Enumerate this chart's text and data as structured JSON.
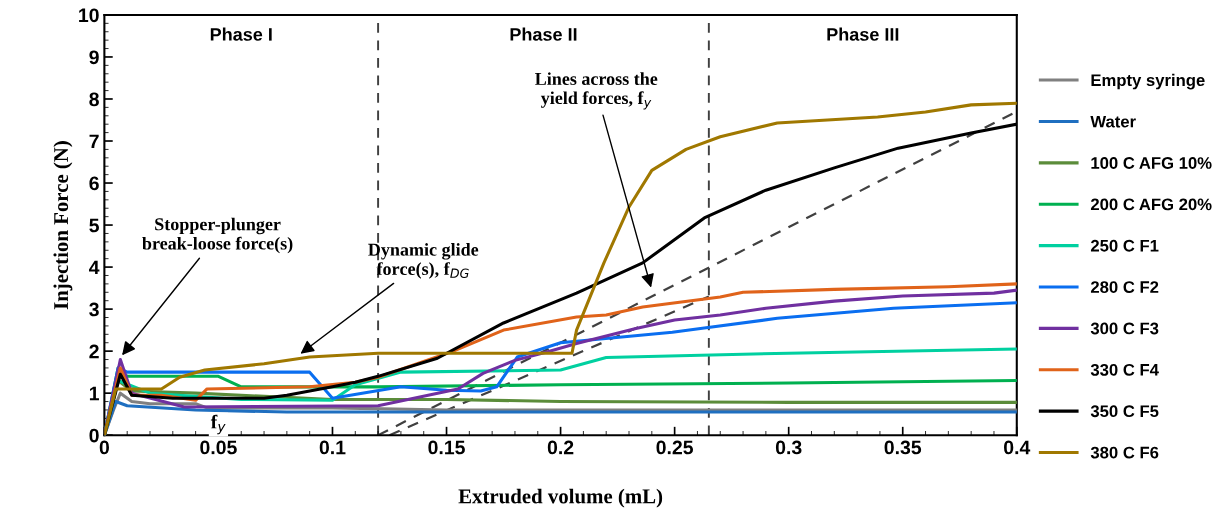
{
  "chart_data": {
    "type": "line",
    "xlabel": "Extruded volume (mL)",
    "ylabel": "Injection Force (N)",
    "xlim": [
      0,
      0.4
    ],
    "ylim": [
      0,
      10
    ],
    "xticks": [
      0,
      0.05,
      0.1,
      0.15,
      0.2,
      0.25,
      0.3,
      0.35,
      0.4
    ],
    "yticks": [
      0,
      1,
      2,
      3,
      4,
      5,
      6,
      7,
      8,
      9,
      10
    ],
    "grid": false,
    "legend": "right",
    "line_style": "solid",
    "marker": "none",
    "ref_lines": [
      {
        "axis": "x",
        "value": 0.12,
        "color": "#404040",
        "line_style": "dashed"
      },
      {
        "axis": "x",
        "value": 0.265,
        "color": "#404040",
        "line_style": "dashed"
      }
    ],
    "annotations": [
      "Phase I",
      "Phase II",
      "Phase III",
      {
        "text": "Stopper-plunger\nbreak-loose force(s)",
        "x": 0.007,
        "y": 1.85
      },
      {
        "text": "Dynamic glide\nforce(s), f$_{DG}$",
        "x": 0.085,
        "y": 1.9
      },
      {
        "text": "Lines across the\nyield forces, f$_{y}$",
        "x": 0.24,
        "y": 3.45
      },
      {
        "text": "f$_{y}$",
        "x": 0.05,
        "y": 0.55
      }
    ],
    "series": [
      {
        "name": "Empty syringe",
        "color": "#808080",
        "x": [
          0,
          0.004,
          0.007,
          0.012,
          0.02,
          0.04,
          0.045,
          0.1,
          0.15,
          0.2,
          0.3,
          0.4
        ],
        "values": [
          0,
          0.6,
          1.0,
          0.8,
          0.75,
          0.75,
          0.65,
          0.65,
          0.6,
          0.6,
          0.6,
          0.6
        ]
      },
      {
        "name": "Water",
        "color": "#1f6fc0",
        "x": [
          0,
          0.005,
          0.01,
          0.04,
          0.08,
          0.2,
          0.3,
          0.4
        ],
        "values": [
          0,
          0.8,
          0.7,
          0.6,
          0.55,
          0.55,
          0.55,
          0.55
        ]
      },
      {
        "name": "100 C AFG 10%",
        "color": "#5b8c3a",
        "x": [
          0,
          0.006,
          0.012,
          0.04,
          0.06,
          0.1,
          0.15,
          0.2,
          0.3,
          0.4
        ],
        "values": [
          0,
          1.3,
          1.05,
          1.0,
          0.95,
          0.85,
          0.85,
          0.8,
          0.78,
          0.78
        ]
      },
      {
        "name": "200 C AFG 20%",
        "color": "#00b050",
        "x": [
          0,
          0.006,
          0.01,
          0.05,
          0.06,
          0.12,
          0.2,
          0.3,
          0.4
        ],
        "values": [
          0,
          1.6,
          1.4,
          1.4,
          1.15,
          1.15,
          1.2,
          1.24,
          1.3
        ]
      },
      {
        "name": "250 C F1",
        "color": "#00d0a0",
        "x": [
          0,
          0.006,
          0.02,
          0.06,
          0.1,
          0.11,
          0.13,
          0.2,
          0.22,
          0.3,
          0.4
        ],
        "values": [
          0,
          1.3,
          1.0,
          0.85,
          0.83,
          1.2,
          1.5,
          1.55,
          1.85,
          1.95,
          2.05
        ]
      },
      {
        "name": "280 C F2",
        "color": "#0a6ef0",
        "x": [
          0,
          0.006,
          0.01,
          0.09,
          0.1,
          0.13,
          0.15,
          0.165,
          0.172,
          0.181,
          0.2,
          0.249,
          0.263,
          0.295,
          0.346,
          0.4
        ],
        "values": [
          0,
          1.6,
          1.5,
          1.5,
          0.88,
          1.15,
          1.07,
          1.05,
          1.15,
          1.86,
          2.2,
          2.45,
          2.55,
          2.78,
          3.02,
          3.15
        ]
      },
      {
        "name": "300 C F3",
        "color": "#7030a0",
        "x": [
          0,
          0.007,
          0.012,
          0.035,
          0.12,
          0.155,
          0.166,
          0.18,
          0.194,
          0.207,
          0.233,
          0.25,
          0.27,
          0.29,
          0.32,
          0.35,
          0.39,
          0.4
        ],
        "values": [
          0,
          1.8,
          1.0,
          0.67,
          0.7,
          1.1,
          1.47,
          1.78,
          1.98,
          2.18,
          2.54,
          2.74,
          2.86,
          3.02,
          3.19,
          3.31,
          3.38,
          3.45
        ]
      },
      {
        "name": "330 C F4",
        "color": "#e0631a",
        "x": [
          0,
          0.007,
          0.012,
          0.025,
          0.04,
          0.045,
          0.09,
          0.11,
          0.12,
          0.153,
          0.175,
          0.207,
          0.22,
          0.236,
          0.27,
          0.28,
          0.32,
          0.37,
          0.4
        ],
        "values": [
          0,
          1.6,
          0.95,
          0.95,
          0.83,
          1.1,
          1.15,
          1.26,
          1.38,
          2.0,
          2.5,
          2.81,
          2.86,
          3.05,
          3.29,
          3.4,
          3.47,
          3.53,
          3.6
        ]
      },
      {
        "name": "350 C F5",
        "color": "#000000",
        "x": [
          0,
          0.007,
          0.012,
          0.03,
          0.07,
          0.08,
          0.1,
          0.11,
          0.12,
          0.146,
          0.175,
          0.207,
          0.236,
          0.263,
          0.29,
          0.32,
          0.348,
          0.38,
          0.4
        ],
        "values": [
          0,
          1.45,
          0.95,
          0.88,
          0.88,
          0.95,
          1.15,
          1.26,
          1.4,
          1.83,
          2.67,
          3.38,
          4.1,
          5.17,
          5.83,
          6.36,
          6.83,
          7.19,
          7.4
        ]
      },
      {
        "name": "380 C F6",
        "color": "#a07800",
        "x": [
          0,
          0.005,
          0.025,
          0.033,
          0.044,
          0.07,
          0.09,
          0.12,
          0.205,
          0.207,
          0.219,
          0.23,
          0.24,
          0.255,
          0.27,
          0.295,
          0.339,
          0.36,
          0.38,
          0.4
        ],
        "values": [
          0,
          1.1,
          1.1,
          1.38,
          1.55,
          1.7,
          1.86,
          1.95,
          1.95,
          2.5,
          4.1,
          5.43,
          6.3,
          6.8,
          7.1,
          7.43,
          7.57,
          7.69,
          7.86,
          7.9
        ]
      },
      {
        "type": "line",
        "color": "#404040",
        "line_style": "dashed",
        "x": [
          0.12,
          0.4
        ],
        "values": [
          0,
          7.7
        ]
      },
      {
        "type": "line",
        "color": "#404040",
        "line_style": "dashed",
        "x": [
          0.125,
          0.265
        ],
        "values": [
          0,
          3.3
        ]
      }
    ]
  }
}
